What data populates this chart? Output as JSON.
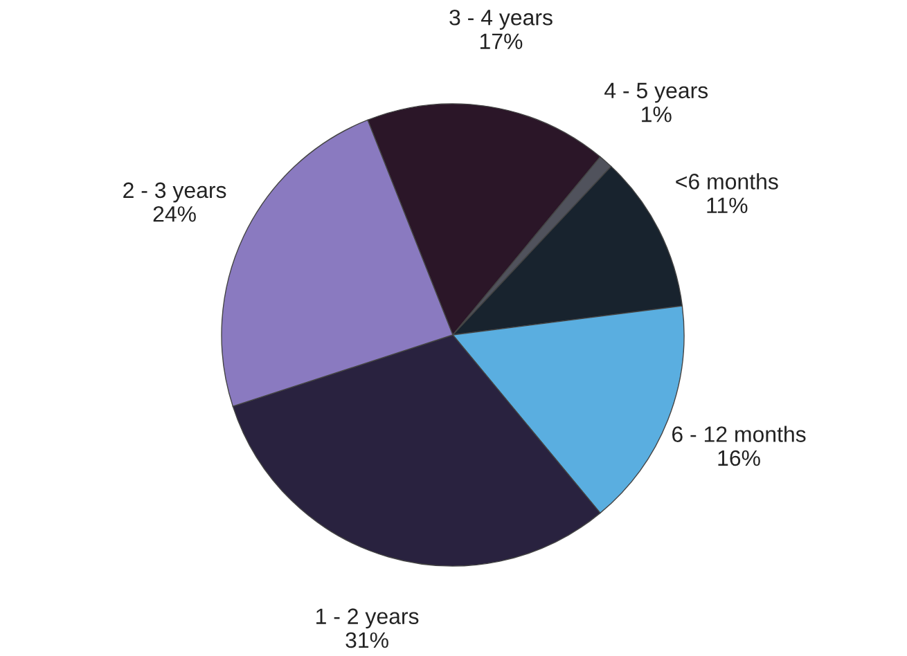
{
  "chart_data": {
    "type": "pie",
    "categories": [
      "3 - 4 years",
      "4 - 5 years",
      "<6 months",
      "6 - 12 months",
      "1 - 2 years",
      "2 - 3 years"
    ],
    "values": [
      17,
      1,
      11,
      16,
      31,
      24
    ],
    "value_labels": [
      "17%",
      "1%",
      "11%",
      "16%",
      "31%",
      "24%"
    ],
    "colors": [
      "#2b1628",
      "#50525c",
      "#18232e",
      "#5aaee0",
      "#29223f",
      "#8a7ac0"
    ]
  }
}
